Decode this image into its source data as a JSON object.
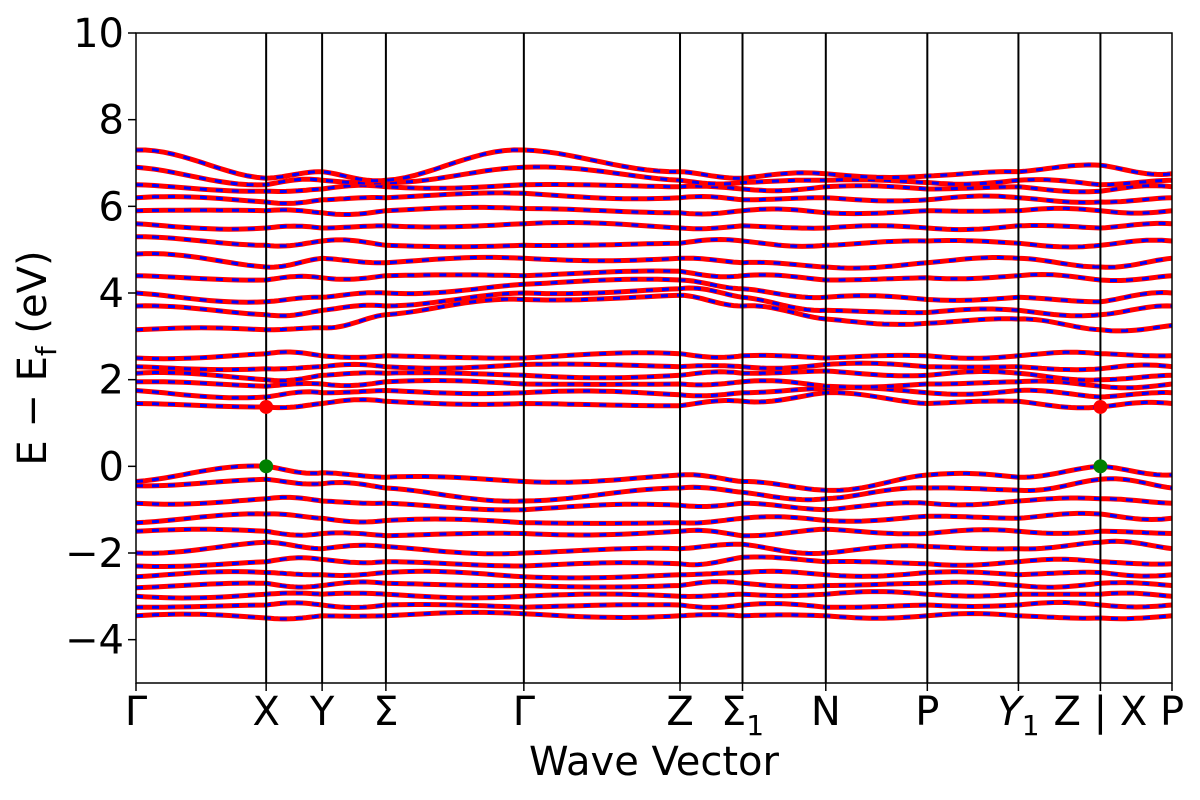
{
  "chart_data": {
    "type": "line",
    "title": "",
    "xlabel": "Wave Vector",
    "ylabel": "E − E_f (eV)",
    "ylabel_parts": {
      "main": "E − E",
      "sub": "f",
      "unit": " (eV)"
    },
    "ylim": [
      -5,
      10
    ],
    "yticks": [
      -4,
      -2,
      0,
      2,
      4,
      6,
      8,
      10
    ],
    "ytick_labels": [
      "−4",
      "−2",
      "0",
      "2",
      "4",
      "6",
      "8",
      "10"
    ],
    "xlim": [
      0,
      7.96
    ],
    "kpoints": [
      {
        "label": "Γ",
        "sub": "",
        "x": 0.0
      },
      {
        "label": "X",
        "sub": "",
        "x": 1.0
      },
      {
        "label": "Y",
        "sub": "",
        "x": 1.43
      },
      {
        "label": "Σ",
        "sub": "",
        "x": 1.92
      },
      {
        "label": "Γ",
        "sub": "",
        "x": 2.98
      },
      {
        "label": "Z",
        "sub": "",
        "x": 4.18
      },
      {
        "label": "Σ",
        "sub": "1",
        "x": 4.66
      },
      {
        "label": "N",
        "sub": "",
        "x": 5.3
      },
      {
        "label": "P",
        "sub": "",
        "x": 6.08
      },
      {
        "label": "Y",
        "sub": "1",
        "x": 6.78
      },
      {
        "label": "Z | X",
        "sub": "",
        "x": 7.41
      },
      {
        "label": "P",
        "sub": "",
        "x": 7.96
      }
    ],
    "markers": [
      {
        "name": "cbm",
        "x": 1.0,
        "y": 1.37,
        "color": "#ff0000"
      },
      {
        "name": "vbm",
        "x": 1.0,
        "y": 0.0,
        "color": "#008000"
      },
      {
        "name": "cbm",
        "x": 7.41,
        "y": 1.37,
        "color": "#ff0000"
      },
      {
        "name": "vbm",
        "x": 7.41,
        "y": 0.0,
        "color": "#008000"
      }
    ],
    "series": [
      {
        "band_group": "valence",
        "y_at_kpoints": [
          [
            -0.35,
            0.0,
            -0.15,
            -0.25,
            -0.35,
            -0.2,
            -0.35,
            -0.55,
            -0.2,
            -0.25,
            0.0,
            -0.2
          ],
          [
            -0.45,
            -0.3,
            -0.4,
            -0.5,
            -0.8,
            -0.5,
            -0.6,
            -0.75,
            -0.5,
            -0.55,
            -0.3,
            -0.5
          ],
          [
            -0.85,
            -0.75,
            -0.8,
            -0.85,
            -1.0,
            -0.9,
            -0.85,
            -1.0,
            -0.85,
            -0.8,
            -0.75,
            -0.85
          ],
          [
            -1.3,
            -1.1,
            -1.2,
            -1.25,
            -1.3,
            -1.3,
            -1.2,
            -1.25,
            -1.15,
            -1.2,
            -1.1,
            -1.2
          ],
          [
            -1.5,
            -1.5,
            -1.55,
            -1.6,
            -1.55,
            -1.5,
            -1.6,
            -1.45,
            -1.55,
            -1.5,
            -1.5,
            -1.55
          ],
          [
            -2.0,
            -1.75,
            -1.9,
            -1.85,
            -2.0,
            -1.9,
            -1.8,
            -2.0,
            -1.85,
            -1.9,
            -1.75,
            -1.9
          ],
          [
            -2.3,
            -2.2,
            -2.15,
            -2.2,
            -2.3,
            -2.25,
            -2.1,
            -2.2,
            -2.25,
            -2.2,
            -2.2,
            -2.25
          ],
          [
            -2.55,
            -2.45,
            -2.5,
            -2.45,
            -2.55,
            -2.5,
            -2.45,
            -2.5,
            -2.45,
            -2.5,
            -2.45,
            -2.5
          ],
          [
            -2.8,
            -2.7,
            -2.75,
            -2.7,
            -2.75,
            -2.75,
            -2.7,
            -2.75,
            -2.7,
            -2.75,
            -2.7,
            -2.75
          ],
          [
            -3.0,
            -2.95,
            -2.95,
            -2.95,
            -3.0,
            -3.0,
            -2.95,
            -2.95,
            -2.95,
            -2.95,
            -2.95,
            -3.0
          ],
          [
            -3.25,
            -3.2,
            -3.2,
            -3.2,
            -3.25,
            -3.2,
            -3.2,
            -3.25,
            -3.2,
            -3.2,
            -3.2,
            -3.2
          ],
          [
            -3.45,
            -3.5,
            -3.45,
            -3.45,
            -3.4,
            -3.45,
            -3.45,
            -3.45,
            -3.45,
            -3.45,
            -3.5,
            -3.45
          ]
        ]
      },
      {
        "band_group": "conduction-low",
        "y_at_kpoints": [
          [
            1.45,
            1.37,
            1.45,
            1.5,
            1.45,
            1.4,
            1.5,
            1.7,
            1.45,
            1.5,
            1.37,
            1.45
          ],
          [
            1.75,
            1.6,
            1.7,
            1.75,
            1.7,
            1.65,
            1.7,
            1.8,
            1.7,
            1.75,
            1.6,
            1.7
          ],
          [
            1.95,
            1.85,
            1.9,
            1.95,
            1.9,
            1.9,
            1.95,
            1.85,
            1.9,
            1.95,
            1.85,
            1.9
          ],
          [
            2.15,
            2.0,
            2.1,
            2.15,
            2.1,
            2.1,
            2.15,
            2.2,
            2.1,
            2.15,
            2.0,
            2.1
          ],
          [
            2.3,
            2.25,
            2.3,
            2.3,
            2.35,
            2.3,
            2.3,
            2.35,
            2.3,
            2.3,
            2.25,
            2.3
          ],
          [
            2.5,
            2.6,
            2.55,
            2.55,
            2.5,
            2.6,
            2.55,
            2.5,
            2.55,
            2.55,
            2.6,
            2.55
          ]
        ]
      },
      {
        "band_group": "conduction-high",
        "y_at_kpoints": [
          [
            3.15,
            3.15,
            3.2,
            3.5,
            3.85,
            3.95,
            3.7,
            3.4,
            3.3,
            3.4,
            3.15,
            3.25
          ],
          [
            3.7,
            3.5,
            3.6,
            3.7,
            4.0,
            4.1,
            3.9,
            3.6,
            3.55,
            3.6,
            3.5,
            3.7
          ],
          [
            4.0,
            3.8,
            3.9,
            4.0,
            4.2,
            4.3,
            4.1,
            3.9,
            3.85,
            3.9,
            3.8,
            4.0
          ],
          [
            4.4,
            4.3,
            4.35,
            4.4,
            4.4,
            4.5,
            4.4,
            4.3,
            4.35,
            4.4,
            4.3,
            4.4
          ],
          [
            4.9,
            4.6,
            4.8,
            4.7,
            4.8,
            4.8,
            4.7,
            4.6,
            4.7,
            4.8,
            4.6,
            4.8
          ],
          [
            5.3,
            5.1,
            5.2,
            5.1,
            5.1,
            5.15,
            5.2,
            5.1,
            5.2,
            5.15,
            5.1,
            5.2
          ],
          [
            5.6,
            5.5,
            5.5,
            5.55,
            5.6,
            5.5,
            5.55,
            5.5,
            5.5,
            5.55,
            5.5,
            5.6
          ],
          [
            5.9,
            5.9,
            5.85,
            5.9,
            5.95,
            5.85,
            5.9,
            5.85,
            5.9,
            5.9,
            5.9,
            5.9
          ],
          [
            6.2,
            6.1,
            6.15,
            6.2,
            6.3,
            6.2,
            6.15,
            6.2,
            6.15,
            6.2,
            6.1,
            6.2
          ],
          [
            6.5,
            6.35,
            6.4,
            6.45,
            6.5,
            6.45,
            6.4,
            6.45,
            6.4,
            6.45,
            6.35,
            6.45
          ],
          [
            6.9,
            6.5,
            6.6,
            6.55,
            6.9,
            6.6,
            6.55,
            6.6,
            6.55,
            6.6,
            6.5,
            6.6
          ],
          [
            7.3,
            6.65,
            6.8,
            6.6,
            7.3,
            6.8,
            6.65,
            6.75,
            6.7,
            6.8,
            6.95,
            6.75
          ]
        ]
      }
    ],
    "line_colors": [
      "#ff0000",
      "#0000ff"
    ],
    "grid": false,
    "legend": "none"
  }
}
